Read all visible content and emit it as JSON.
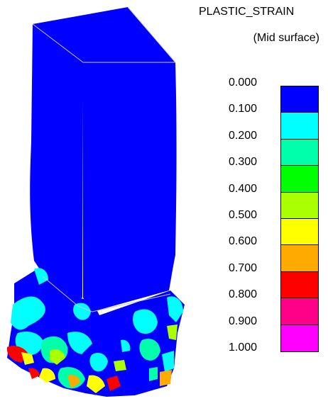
{
  "legend": {
    "title": "PLASTIC_STRAIN",
    "subtitle": "(Mid surface)",
    "ticks": [
      "0.000",
      "0.100",
      "0.200",
      "0.300",
      "0.400",
      "0.500",
      "0.600",
      "0.700",
      "0.800",
      "0.900",
      "1.000"
    ],
    "band_colors": [
      "#0000ff",
      "#00ffff",
      "#00ffaa",
      "#00ff00",
      "#aaff00",
      "#ffff00",
      "#ffaa00",
      "#ff0000",
      "#ff0088",
      "#ff00ff"
    ]
  },
  "model": {
    "body_color": "#0000ff",
    "edge_color": "#c8c8c8"
  }
}
